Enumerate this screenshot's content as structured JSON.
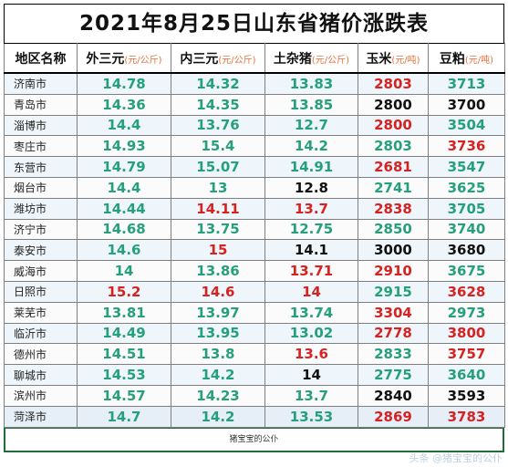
{
  "title": "2021年8月25日山东省猪价涨跌表",
  "headers": [
    {
      "label": "地区名称",
      "unit": ""
    },
    {
      "label": "外三元",
      "unit": "(元/公斤)"
    },
    {
      "label": "内三元",
      "unit": "(元/公斤)"
    },
    {
      "label": "土杂猪",
      "unit": "(元/公斤)"
    },
    {
      "label": "玉米",
      "unit": "(元/吨)"
    },
    {
      "label": "豆粕",
      "unit": "(元/吨)"
    }
  ],
  "rows": [
    {
      "region": "济南市",
      "values": [
        "14.78",
        "14.32",
        "13.83",
        "2803",
        "3713"
      ],
      "colors": [
        "green",
        "green",
        "green",
        "red",
        "green"
      ]
    },
    {
      "region": "青岛市",
      "values": [
        "14.36",
        "14.35",
        "13.85",
        "2800",
        "3700"
      ],
      "colors": [
        "green",
        "green",
        "green",
        "black",
        "black"
      ]
    },
    {
      "region": "淄博市",
      "values": [
        "14.4",
        "13.76",
        "12.7",
        "2800",
        "3504"
      ],
      "colors": [
        "green",
        "green",
        "green",
        "red",
        "green"
      ]
    },
    {
      "region": "枣庄市",
      "values": [
        "14.93",
        "15.4",
        "14.2",
        "2803",
        "3736"
      ],
      "colors": [
        "green",
        "green",
        "green",
        "green",
        "red"
      ]
    },
    {
      "region": "东营市",
      "values": [
        "14.79",
        "15.07",
        "14.91",
        "2681",
        "3547"
      ],
      "colors": [
        "green",
        "green",
        "green",
        "red",
        "green"
      ]
    },
    {
      "region": "烟台市",
      "values": [
        "14.4",
        "13",
        "12.8",
        "2741",
        "3625"
      ],
      "colors": [
        "green",
        "green",
        "black",
        "green",
        "green"
      ]
    },
    {
      "region": "潍坊市",
      "values": [
        "14.44",
        "14.11",
        "13.7",
        "2838",
        "3705"
      ],
      "colors": [
        "green",
        "red",
        "red",
        "red",
        "green"
      ]
    },
    {
      "region": "济宁市",
      "values": [
        "14.68",
        "13.75",
        "12.75",
        "2850",
        "3740"
      ],
      "colors": [
        "green",
        "green",
        "green",
        "green",
        "green"
      ]
    },
    {
      "region": "泰安市",
      "values": [
        "14.6",
        "15",
        "14.1",
        "3000",
        "3680"
      ],
      "colors": [
        "green",
        "red",
        "black",
        "black",
        "black"
      ]
    },
    {
      "region": "威海市",
      "values": [
        "14",
        "13.86",
        "13.71",
        "2910",
        "3675"
      ],
      "colors": [
        "green",
        "green",
        "red",
        "red",
        "green"
      ]
    },
    {
      "region": "日照市",
      "values": [
        "15.2",
        "14.6",
        "14",
        "2915",
        "3628"
      ],
      "colors": [
        "red",
        "red",
        "red",
        "green",
        "red"
      ]
    },
    {
      "region": "莱芜市",
      "values": [
        "13.81",
        "13.97",
        "13.74",
        "3304",
        "2973"
      ],
      "colors": [
        "green",
        "green",
        "green",
        "red",
        "green"
      ]
    },
    {
      "region": "临沂市",
      "values": [
        "14.49",
        "13.95",
        "13.02",
        "2778",
        "3800"
      ],
      "colors": [
        "green",
        "green",
        "green",
        "red",
        "red"
      ]
    },
    {
      "region": "德州市",
      "values": [
        "14.51",
        "13.8",
        "13.6",
        "2833",
        "3757"
      ],
      "colors": [
        "green",
        "green",
        "red",
        "green",
        "red"
      ]
    },
    {
      "region": "聊城市",
      "values": [
        "14.53",
        "14.2",
        "14",
        "2775",
        "3640"
      ],
      "colors": [
        "green",
        "green",
        "black",
        "green",
        "green"
      ]
    },
    {
      "region": "滨州市",
      "values": [
        "14.57",
        "14.23",
        "13.7",
        "2840",
        "3593"
      ],
      "colors": [
        "green",
        "green",
        "green",
        "black",
        "black"
      ]
    },
    {
      "region": "菏泽市",
      "values": [
        "14.7",
        "14.2",
        "13.53",
        "2869",
        "3783"
      ],
      "colors": [
        "green",
        "green",
        "green",
        "red",
        "red"
      ]
    }
  ],
  "footer": "猪宝宝的公仆",
  "watermark": "头条 @猪宝宝的公仆",
  "colors": {
    "green": "#26a07c",
    "red": "#d62321",
    "black": "#111111",
    "unit": "#e8703a"
  }
}
